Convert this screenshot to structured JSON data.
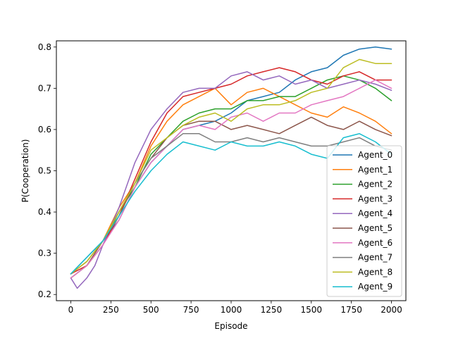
{
  "chart_data": {
    "type": "line",
    "title": "",
    "xlabel": "Episode",
    "ylabel": "P(Cooperation)",
    "xlim": [
      -90,
      2090
    ],
    "ylim": [
      0.185,
      0.815
    ],
    "xticks": [
      0,
      250,
      500,
      750,
      1000,
      1250,
      1500,
      1750,
      2000
    ],
    "yticks": [
      0.2,
      0.3,
      0.4,
      0.5,
      0.6,
      0.7,
      0.8
    ],
    "xtick_labels": [
      "0",
      "250",
      "500",
      "750",
      "1000",
      "1250",
      "1500",
      "1750",
      "2000"
    ],
    "ytick_labels": [
      "0.2",
      "0.3",
      "0.4",
      "0.5",
      "0.6",
      "0.7",
      "0.8"
    ],
    "grid": false,
    "legend_position": "lower-right",
    "series": [
      {
        "name": "Agent_0",
        "color": "#1f77b4",
        "x": [
          0,
          100,
          200,
          300,
          400,
          500,
          600,
          700,
          800,
          900,
          1000,
          1100,
          1200,
          1300,
          1400,
          1500,
          1600,
          1700,
          1800,
          1900,
          2000
        ],
        "y": [
          0.25,
          0.29,
          0.33,
          0.38,
          0.46,
          0.52,
          0.56,
          0.6,
          0.61,
          0.62,
          0.64,
          0.67,
          0.68,
          0.69,
          0.72,
          0.74,
          0.75,
          0.78,
          0.795,
          0.8,
          0.795
        ]
      },
      {
        "name": "Agent_1",
        "color": "#ff7f0e",
        "x": [
          0,
          100,
          200,
          300,
          400,
          500,
          600,
          700,
          800,
          900,
          1000,
          1100,
          1200,
          1300,
          1400,
          1500,
          1600,
          1700,
          1800,
          1900,
          2000
        ],
        "y": [
          0.25,
          0.28,
          0.33,
          0.41,
          0.47,
          0.56,
          0.62,
          0.66,
          0.68,
          0.7,
          0.66,
          0.69,
          0.7,
          0.68,
          0.66,
          0.64,
          0.63,
          0.655,
          0.64,
          0.62,
          0.59
        ]
      },
      {
        "name": "Agent_2",
        "color": "#2ca02c",
        "x": [
          0,
          100,
          200,
          300,
          400,
          500,
          600,
          700,
          800,
          900,
          1000,
          1100,
          1200,
          1300,
          1400,
          1500,
          1600,
          1700,
          1800,
          1900,
          2000
        ],
        "y": [
          0.24,
          0.27,
          0.32,
          0.4,
          0.46,
          0.54,
          0.58,
          0.62,
          0.64,
          0.65,
          0.65,
          0.67,
          0.67,
          0.68,
          0.68,
          0.7,
          0.72,
          0.73,
          0.72,
          0.7,
          0.67
        ]
      },
      {
        "name": "Agent_3",
        "color": "#d62728",
        "x": [
          0,
          100,
          200,
          300,
          400,
          500,
          600,
          700,
          800,
          900,
          1000,
          1100,
          1200,
          1300,
          1400,
          1500,
          1600,
          1700,
          1800,
          1900,
          2000
        ],
        "y": [
          0.25,
          0.27,
          0.32,
          0.39,
          0.48,
          0.57,
          0.64,
          0.68,
          0.69,
          0.7,
          0.71,
          0.73,
          0.74,
          0.75,
          0.74,
          0.72,
          0.71,
          0.73,
          0.74,
          0.72,
          0.72
        ]
      },
      {
        "name": "Agent_4",
        "color": "#9467bd",
        "x": [
          0,
          40,
          100,
          150,
          200,
          300,
          400,
          500,
          600,
          700,
          800,
          900,
          1000,
          1100,
          1200,
          1300,
          1400,
          1500,
          1600,
          1700,
          1800,
          1900,
          2000
        ],
        "y": [
          0.24,
          0.215,
          0.24,
          0.27,
          0.32,
          0.41,
          0.52,
          0.6,
          0.65,
          0.69,
          0.7,
          0.7,
          0.73,
          0.74,
          0.72,
          0.73,
          0.71,
          0.72,
          0.7,
          0.71,
          0.72,
          0.71,
          0.695
        ]
      },
      {
        "name": "Agent_5",
        "color": "#8c564b",
        "x": [
          0,
          100,
          200,
          300,
          400,
          500,
          600,
          700,
          800,
          900,
          1000,
          1100,
          1200,
          1300,
          1400,
          1500,
          1600,
          1700,
          1800,
          1900,
          2000
        ],
        "y": [
          0.24,
          0.27,
          0.33,
          0.39,
          0.47,
          0.53,
          0.58,
          0.61,
          0.62,
          0.62,
          0.6,
          0.61,
          0.6,
          0.59,
          0.61,
          0.63,
          0.61,
          0.6,
          0.62,
          0.6,
          0.585
        ]
      },
      {
        "name": "Agent_6",
        "color": "#e377c2",
        "x": [
          0,
          100,
          200,
          300,
          400,
          500,
          600,
          700,
          800,
          900,
          1000,
          1100,
          1200,
          1300,
          1400,
          1500,
          1600,
          1700,
          1800,
          1900,
          2000
        ],
        "y": [
          0.24,
          0.27,
          0.32,
          0.38,
          0.46,
          0.52,
          0.56,
          0.6,
          0.61,
          0.6,
          0.63,
          0.64,
          0.62,
          0.64,
          0.64,
          0.66,
          0.67,
          0.68,
          0.7,
          0.72,
          0.7
        ]
      },
      {
        "name": "Agent_7",
        "color": "#7f7f7f",
        "x": [
          0,
          100,
          200,
          300,
          400,
          500,
          600,
          700,
          800,
          900,
          1000,
          1100,
          1200,
          1300,
          1400,
          1500,
          1600,
          1700,
          1800,
          1900,
          2000
        ],
        "y": [
          0.25,
          0.28,
          0.33,
          0.4,
          0.47,
          0.53,
          0.56,
          0.59,
          0.59,
          0.57,
          0.57,
          0.58,
          0.57,
          0.58,
          0.57,
          0.56,
          0.56,
          0.57,
          0.58,
          0.56,
          0.55
        ]
      },
      {
        "name": "Agent_8",
        "color": "#bcbd22",
        "x": [
          0,
          100,
          200,
          300,
          400,
          500,
          600,
          700,
          800,
          900,
          1000,
          1100,
          1200,
          1300,
          1400,
          1500,
          1600,
          1700,
          1800,
          1900,
          2000
        ],
        "y": [
          0.25,
          0.28,
          0.33,
          0.4,
          0.47,
          0.55,
          0.58,
          0.61,
          0.63,
          0.64,
          0.62,
          0.65,
          0.66,
          0.66,
          0.67,
          0.69,
          0.7,
          0.75,
          0.77,
          0.76,
          0.76
        ]
      },
      {
        "name": "Agent_9",
        "color": "#17becf",
        "x": [
          0,
          100,
          200,
          300,
          400,
          500,
          600,
          700,
          800,
          900,
          1000,
          1100,
          1200,
          1300,
          1400,
          1500,
          1600,
          1700,
          1800,
          1900,
          2000
        ],
        "y": [
          0.25,
          0.29,
          0.33,
          0.39,
          0.45,
          0.5,
          0.54,
          0.57,
          0.56,
          0.55,
          0.57,
          0.56,
          0.56,
          0.57,
          0.56,
          0.54,
          0.53,
          0.58,
          0.59,
          0.57,
          0.54
        ]
      }
    ]
  }
}
